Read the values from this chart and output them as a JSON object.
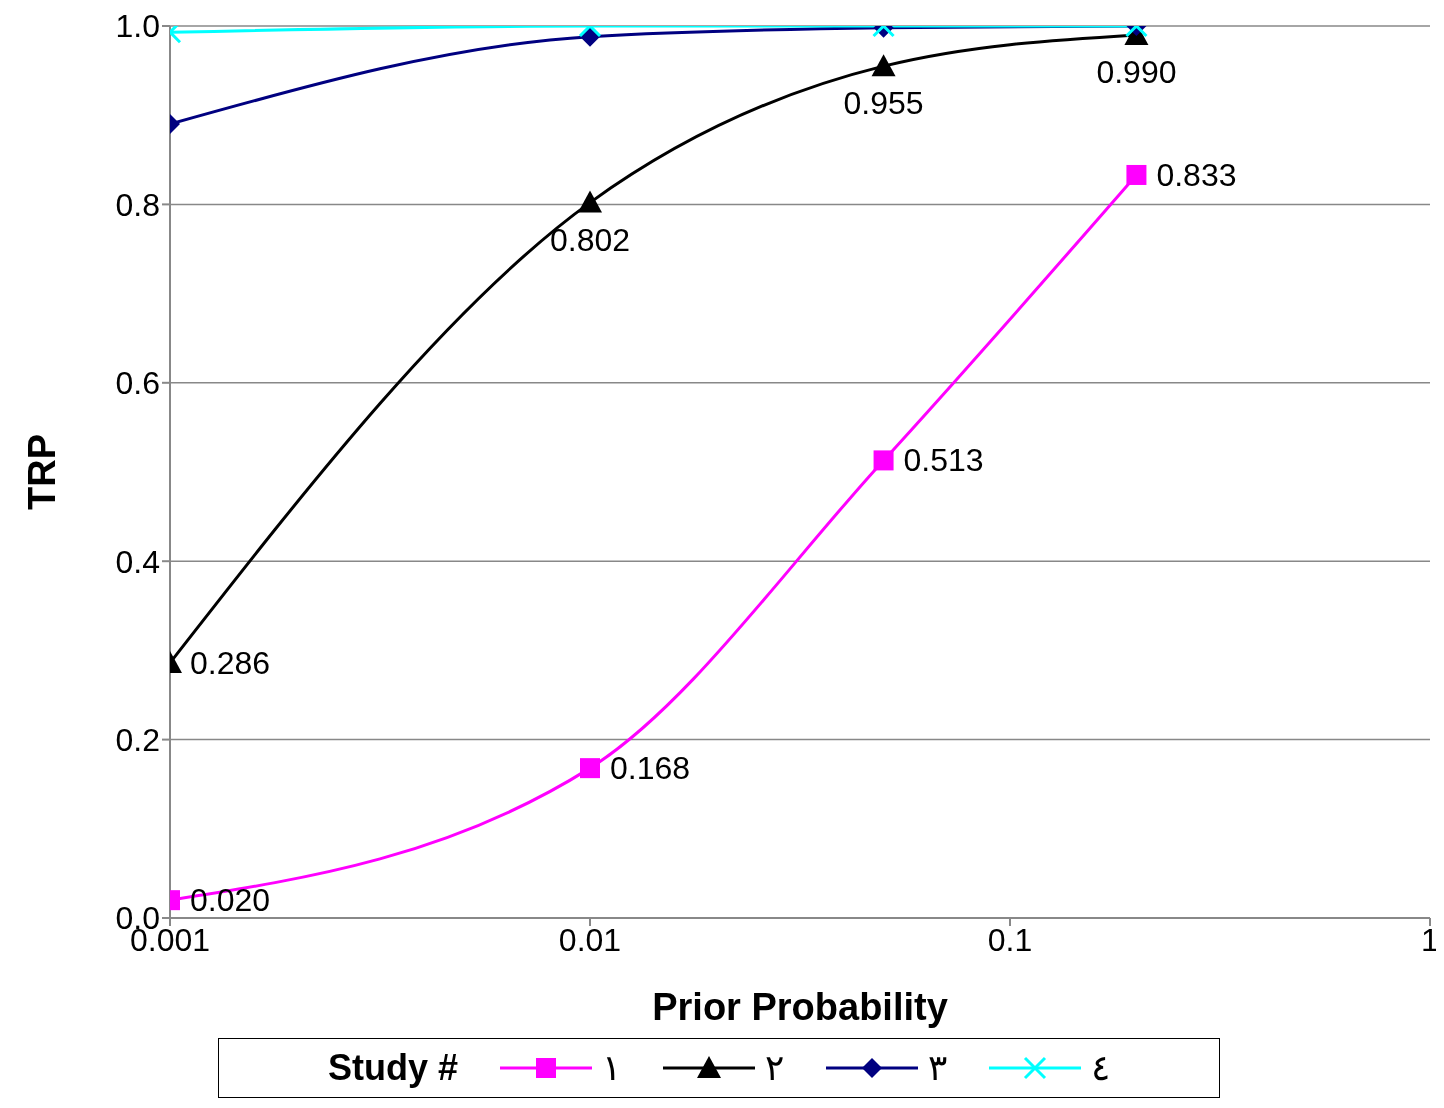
{
  "chart_data": {
    "type": "line",
    "xlabel": "Prior Probability",
    "ylabel": "TRP",
    "legend_title": "Study #",
    "log": "x",
    "grid": "y",
    "legend": "bottom",
    "line_style": "solid",
    "x": [
      0.001,
      0.01,
      0.05,
      0.2
    ],
    "xlim": [
      0.001,
      1
    ],
    "xticks": [
      0.001,
      0.01,
      0.1,
      1
    ],
    "ylim": [
      0,
      1
    ],
    "yticks": [
      {
        "value": 0,
        "label": "0.0"
      },
      0.2,
      0.4,
      0.6,
      0.8,
      {
        "value": 1,
        "label": "1.0"
      }
    ],
    "series": [
      {
        "name": "١",
        "color": "#ff00ff",
        "marker": "square",
        "values": [
          0.02,
          0.168,
          0.513,
          0.833
        ],
        "value_labels": [
          "0.020",
          "0.168",
          "0.513",
          "0.833"
        ]
      },
      {
        "name": "٢",
        "color": "#000000",
        "marker": "triangle",
        "values": [
          0.286,
          0.802,
          0.955,
          0.99
        ],
        "value_labels": [
          "0.286",
          "0.802",
          "0.955",
          "0.990"
        ]
      },
      {
        "name": "٣",
        "color": "#000080",
        "marker": "diamond",
        "values": [
          0.89,
          0.988,
          0.998,
          1.0
        ]
      },
      {
        "name": "٤",
        "color": "#00ffff",
        "marker": "cross",
        "values": [
          0.993,
          1.0,
          1.0,
          1.0
        ]
      }
    ]
  }
}
